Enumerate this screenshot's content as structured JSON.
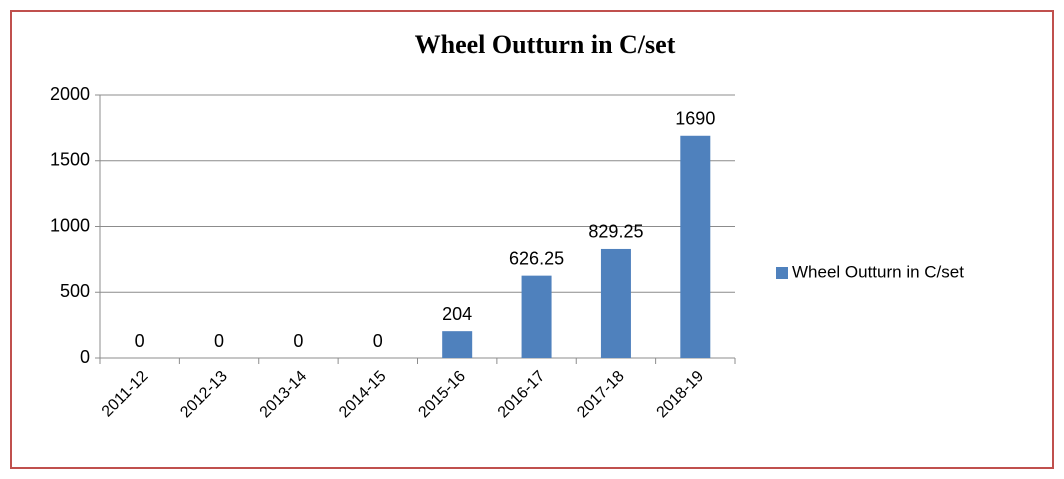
{
  "chart_data": {
    "type": "bar",
    "title": "Wheel Outturn in C/set",
    "categories": [
      "2011-12",
      "2012-13",
      "2013-14",
      "2014-15",
      "2015-16",
      "2016-17",
      "2017-18",
      "2018-19"
    ],
    "series": [
      {
        "name": "Wheel Outturn in C/set",
        "color": "#4f81bd",
        "values": [
          0,
          0,
          0,
          0,
          204,
          626.25,
          829.25,
          1690
        ]
      }
    ],
    "ylim": [
      0,
      2000
    ],
    "yticks": [
      0,
      500,
      1000,
      1500,
      2000
    ],
    "grid": true,
    "legend": "right"
  }
}
